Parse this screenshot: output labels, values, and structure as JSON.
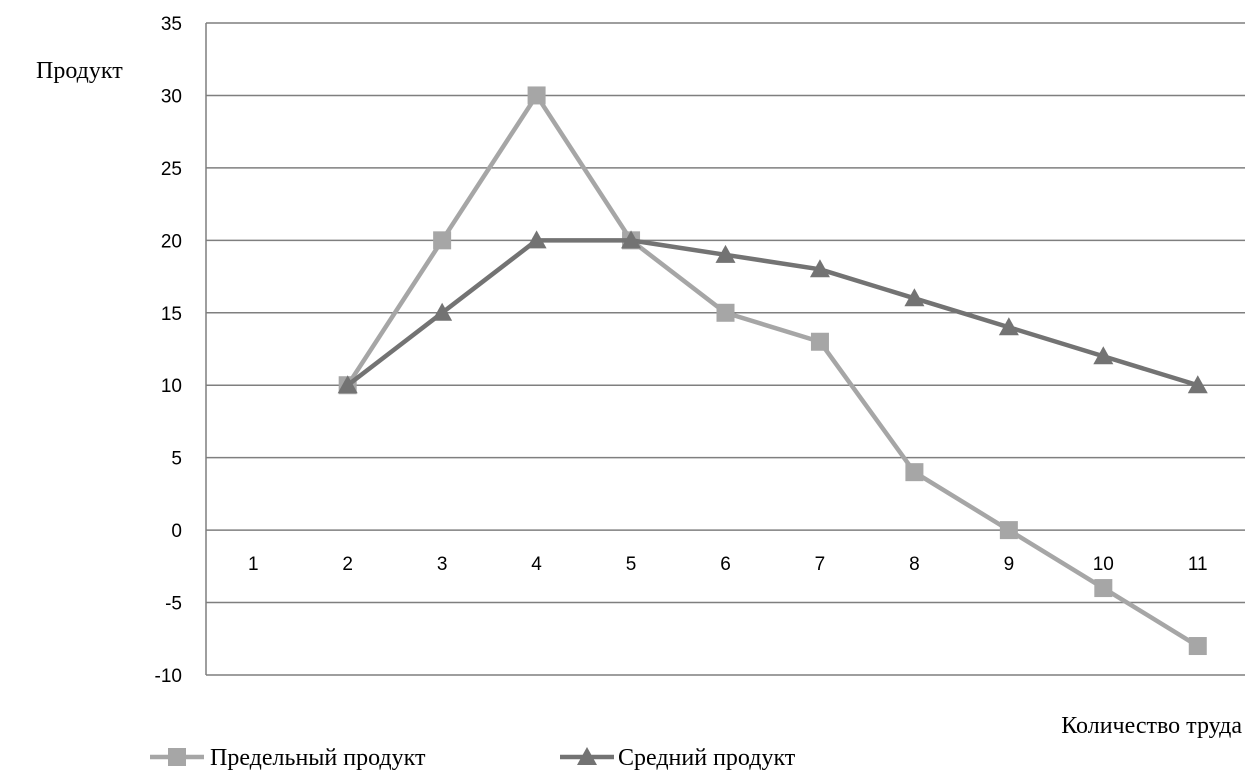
{
  "chart_data": {
    "type": "line",
    "ylabel": "Продукт",
    "xlabel": "Количество труда",
    "categories": [
      "1",
      "2",
      "3",
      "4",
      "5",
      "6",
      "7",
      "8",
      "9",
      "10",
      "11"
    ],
    "ylim": [
      -10,
      35
    ],
    "yticks": [
      "35",
      "30",
      "25",
      "20",
      "15",
      "10",
      "5",
      "0",
      "-5",
      "-10"
    ],
    "grid": true,
    "legend_position": "bottom-left",
    "series": [
      {
        "name": "Предельный продукт",
        "marker": "square",
        "color": "#a6a6a6",
        "values": [
          null,
          10,
          20,
          30,
          20,
          15,
          13,
          4,
          0,
          -4,
          -8
        ]
      },
      {
        "name": "Средний продукт",
        "marker": "triangle",
        "color": "#737373",
        "values": [
          null,
          10,
          15,
          20,
          20,
          19,
          18,
          16,
          14,
          12,
          10
        ]
      }
    ]
  }
}
